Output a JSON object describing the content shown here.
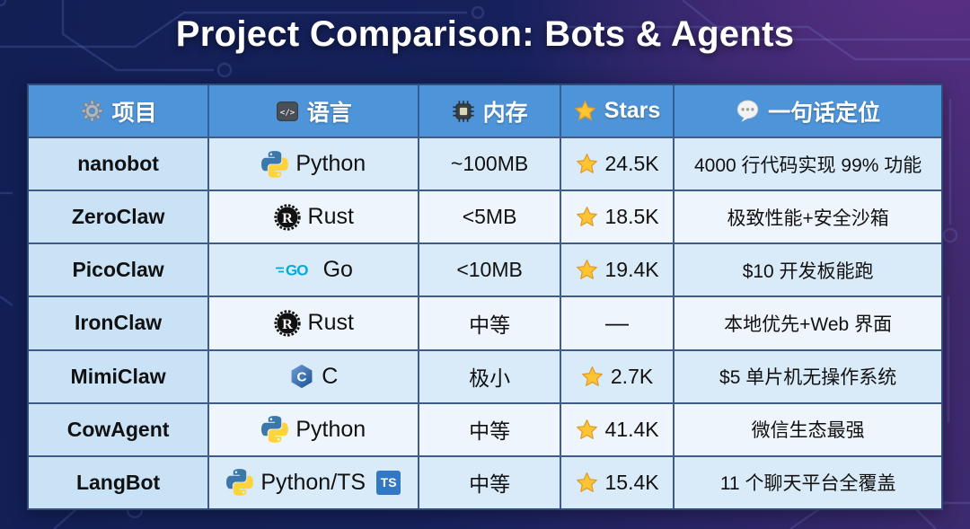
{
  "title": "Project Comparison: Bots & Agents",
  "table": {
    "headers": [
      {
        "icon": "gear-icon",
        "label": "项目"
      },
      {
        "icon": "code-icon",
        "label": "语言"
      },
      {
        "icon": "chip-icon",
        "label": "内存"
      },
      {
        "icon": "star-icon",
        "label": "Stars"
      },
      {
        "icon": "speech-bubble-icon",
        "label": "一句话定位"
      }
    ],
    "rows": [
      {
        "project": "nanobot",
        "language": "Python",
        "language_icon": "python-icon",
        "memory": "~100MB",
        "has_star": true,
        "stars": "24.5K",
        "description": "4000 行代码实现 99% 功能"
      },
      {
        "project": "ZeroClaw",
        "language": "Rust",
        "language_icon": "rust-icon",
        "memory": "<5MB",
        "has_star": true,
        "stars": "18.5K",
        "description": "极致性能+安全沙箱"
      },
      {
        "project": "PicoClaw",
        "language": "Go",
        "language_icon": "go-icon",
        "memory": "<10MB",
        "has_star": true,
        "stars": "19.4K",
        "description": "$10 开发板能跑"
      },
      {
        "project": "IronClaw",
        "language": "Rust",
        "language_icon": "rust-icon",
        "memory": "中等",
        "has_star": false,
        "stars": "—",
        "description": "本地优先+Web 界面"
      },
      {
        "project": "MimiClaw",
        "language": "C",
        "language_icon": "c-icon",
        "memory": "极小",
        "has_star": true,
        "stars": "2.7K",
        "description": "$5 单片机无操作系统"
      },
      {
        "project": "CowAgent",
        "language": "Python",
        "language_icon": "python-icon",
        "memory": "中等",
        "has_star": true,
        "stars": "41.4K",
        "description": "微信生态最强"
      },
      {
        "project": "LangBot",
        "language": "Python/TS",
        "language_icon": "python-icon",
        "language_badge": "TS",
        "memory": "中等",
        "has_star": true,
        "stars": "15.4K",
        "description": "11 个聊天平台全覆盖"
      }
    ]
  },
  "colors": {
    "background_navy": "#16215B",
    "background_purple": "#4C2B76",
    "header_blue": "#4E94D8",
    "row_blue": "#D9EAF8",
    "row_white": "#EEF5FC",
    "first_col_blue": "#C9E2F6",
    "grid_line": "#3E5C87",
    "star_gold": "#FFC431",
    "cell_text": "#111111",
    "title_text": "#FFFFFF",
    "go_cyan": "#00ADD8",
    "ts_blue": "#3178C6",
    "python_blue": "#3B77A8",
    "python_yellow": "#FFD43B"
  }
}
